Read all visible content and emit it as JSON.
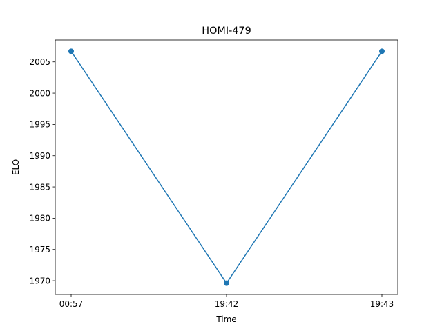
{
  "chart_data": {
    "type": "line",
    "title": "HOMI-479",
    "xlabel": "Time",
    "ylabel": "ELO",
    "categories": [
      "00:57",
      "19:42",
      "19:43"
    ],
    "series": [
      {
        "values": [
          2006.7,
          1969.6,
          2006.7
        ]
      }
    ],
    "yticks": [
      1970,
      1975,
      1980,
      1985,
      1990,
      1995,
      2000,
      2005
    ],
    "ylim": [
      1967.8,
      2008.5
    ],
    "grid": false,
    "markers": "circle",
    "line_color": "#1f77b4",
    "marker_color": "#1f77b4"
  }
}
